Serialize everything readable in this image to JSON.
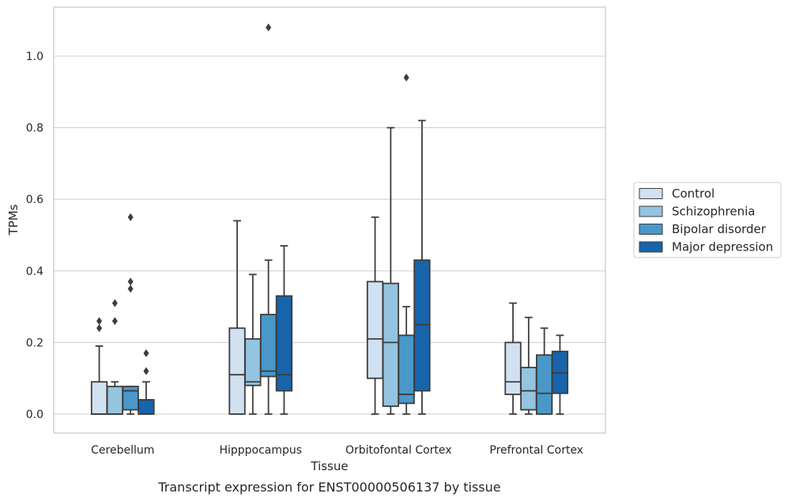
{
  "chart_data": {
    "type": "box",
    "title": "Transcript expression for ENST00000506137 by tissue",
    "xlabel": "Tissue",
    "ylabel": "TPMs",
    "ylim": [
      -0.05,
      1.135
    ],
    "yticks": [
      "0.0",
      "0.2",
      "0.4",
      "0.6",
      "0.8",
      "1.0"
    ],
    "grid": "horizontal",
    "legend_position": "right",
    "categories": [
      "Cerebellum",
      "Hipppocampus",
      "Orbitofontal Cortex",
      "Prefrontal Cortex"
    ],
    "series": [
      {
        "name": "Control",
        "color": "#d0e1f2",
        "boxes": [
          {
            "min": 0.0,
            "q1": 0.0,
            "median": 0.0,
            "q3": 0.09,
            "max": 0.19,
            "outliers": [
              0.24,
              0.26
            ]
          },
          {
            "min": 0.0,
            "q1": 0.0,
            "median": 0.11,
            "q3": 0.24,
            "max": 0.54,
            "outliers": []
          },
          {
            "min": 0.0,
            "q1": 0.1,
            "median": 0.21,
            "q3": 0.37,
            "max": 0.55,
            "outliers": []
          },
          {
            "min": 0.0,
            "q1": 0.055,
            "median": 0.09,
            "q3": 0.2,
            "max": 0.31,
            "outliers": []
          }
        ]
      },
      {
        "name": "Schizophrenia",
        "color": "#94c4df",
        "boxes": [
          {
            "min": 0.0,
            "q1": 0.0,
            "median": 0.0,
            "q3": 0.077,
            "max": 0.09,
            "outliers": [
              0.26,
              0.31
            ]
          },
          {
            "min": 0.0,
            "q1": 0.08,
            "median": 0.09,
            "q3": 0.21,
            "max": 0.39,
            "outliers": []
          },
          {
            "min": 0.0,
            "q1": 0.022,
            "median": 0.2,
            "q3": 0.365,
            "max": 0.8,
            "outliers": []
          },
          {
            "min": 0.0,
            "q1": 0.012,
            "median": 0.065,
            "q3": 0.13,
            "max": 0.27,
            "outliers": []
          }
        ]
      },
      {
        "name": "Bipolar disorder",
        "color": "#4a98c9",
        "boxes": [
          {
            "min": 0.0,
            "q1": 0.012,
            "median": 0.065,
            "q3": 0.077,
            "max": 0.077,
            "outliers": [
              0.35,
              0.37,
              0.55
            ]
          },
          {
            "min": 0.0,
            "q1": 0.105,
            "median": 0.12,
            "q3": 0.278,
            "max": 0.43,
            "outliers": [
              1.08
            ]
          },
          {
            "min": 0.0,
            "q1": 0.03,
            "median": 0.055,
            "q3": 0.22,
            "max": 0.3,
            "outliers": [
              0.94
            ]
          },
          {
            "min": 0.0,
            "q1": 0.0,
            "median": 0.058,
            "q3": 0.165,
            "max": 0.24,
            "outliers": []
          }
        ]
      },
      {
        "name": "Major depression",
        "color": "#1764ab",
        "boxes": [
          {
            "min": 0.0,
            "q1": 0.0,
            "median": 0.0,
            "q3": 0.04,
            "max": 0.09,
            "outliers": [
              0.12,
              0.17
            ]
          },
          {
            "min": 0.0,
            "q1": 0.065,
            "median": 0.11,
            "q3": 0.33,
            "max": 0.47,
            "outliers": []
          },
          {
            "min": 0.0,
            "q1": 0.065,
            "median": 0.25,
            "q3": 0.43,
            "max": 0.82,
            "outliers": []
          },
          {
            "min": 0.0,
            "q1": 0.058,
            "median": 0.115,
            "q3": 0.175,
            "max": 0.22,
            "outliers": []
          }
        ]
      }
    ]
  }
}
